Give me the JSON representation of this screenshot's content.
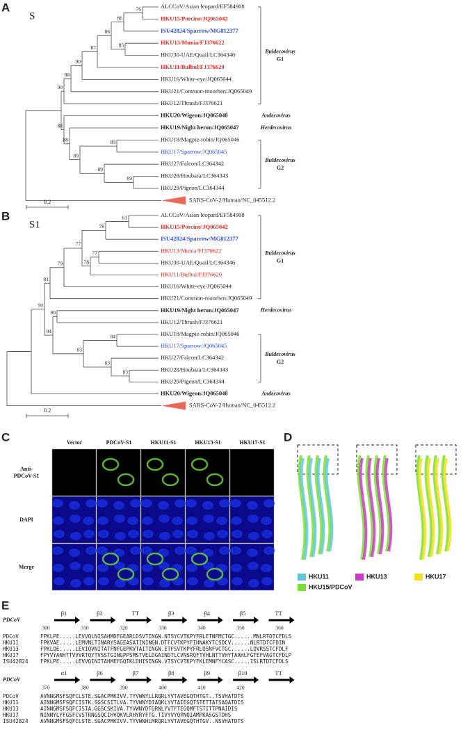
{
  "trees": [
    {
      "letter": "A",
      "title": "S",
      "scale": "0.2",
      "leaves": [
        {
          "label": "ALCCoV/Asian leopard/EF584908"
        },
        {
          "label": "HKU15/Porcine/JQ065042",
          "color": "#e3261f",
          "bold": true
        },
        {
          "label": "ISU42824/Sparrow/MG812377",
          "color": "#2f4fe0",
          "bold": true
        },
        {
          "label": "HKU13/Munia/FJ376622",
          "color": "#e3261f",
          "bold": true
        },
        {
          "label": "HKU30-UAE/Quail/LC364346"
        },
        {
          "label": "HKU11/Bulbul/FJ376620",
          "color": "#e3261f",
          "bold": true
        },
        {
          "label": "HKU16/White-eye/JQ065044"
        },
        {
          "label": "HKU21/Common-moorhen/JQ065049"
        },
        {
          "label": "HKU12/Thrush/FJ376621"
        },
        {
          "label": "HKU20/Wigeon/JQ065048",
          "bold": true
        },
        {
          "label": "HKU19/Night heron/JQ065047",
          "bold": true
        },
        {
          "label": "HKU18/Magpie-robin/JQ065046"
        },
        {
          "label": "HKU17/Sparrow/JQ065045",
          "color": "#2f4fe0"
        },
        {
          "label": "HKU27/Falcon/LC364342"
        },
        {
          "label": "HKU28/Houbara/LC364343"
        },
        {
          "label": "HKU29/Pigeon/LC364344"
        },
        {
          "label": "SARS-CoV-2/Human/NC_045512.2"
        }
      ],
      "bootstraps": [
        76,
        86,
        86,
        85,
        87,
        90,
        88,
        90,
        88,
        88,
        89,
        89,
        89,
        89
      ],
      "clades": [
        {
          "name": "Buldecovirus",
          "group": "G1"
        },
        {
          "name": "Andecovirus"
        },
        {
          "name": "Herdecovirus"
        },
        {
          "name": "Buldecovirus",
          "group": "G2"
        }
      ]
    },
    {
      "letter": "B",
      "title": "S1",
      "scale": "0.2",
      "leaves": [
        {
          "label": "ALCCoV/Asian leopard/EF584908"
        },
        {
          "label": "HKU15/Porcine/JQ065042",
          "color": "#e3261f",
          "bold": true
        },
        {
          "label": "ISU42824/Sparrow/MG812377",
          "color": "#2f4fe0",
          "bold": true
        },
        {
          "label": "HKU13/Munia/FJ376622",
          "color": "#e3261f"
        },
        {
          "label": "HKU30-UAE/Quail/LC364346"
        },
        {
          "label": "HKU11/Bulbul/FJ376620",
          "color": "#e3261f"
        },
        {
          "label": "HKU16/White-eye/JQ065044"
        },
        {
          "label": "HKU21/Common-moorhen/JQ065049"
        },
        {
          "label": "HKU19/Night heron/JQ065047",
          "bold": true
        },
        {
          "label": "HKU12/Thrush/FJ376621"
        },
        {
          "label": "HKU18/Magpie-robin/JQ065046"
        },
        {
          "label": "HKU17/Sparrow/JQ065045",
          "color": "#2f4fe0"
        },
        {
          "label": "HKU27/Falcon/LC364342"
        },
        {
          "label": "HKU28/Houbara/LC364343"
        },
        {
          "label": "HKU29/Pigeon/LC364344"
        },
        {
          "label": "HKU20/Wigeon/JQ065048",
          "bold": true
        },
        {
          "label": "SARS-CoV-2/Human/NC_045512.2"
        }
      ],
      "bootstraps": [
        61,
        78,
        77,
        78,
        77,
        79,
        81,
        90,
        80,
        84,
        84,
        83,
        83,
        83
      ],
      "clades": [
        {
          "name": "Buldecovirus",
          "group": "G1"
        },
        {
          "name": "Herdecovirus"
        },
        {
          "name": "Buldecovirus",
          "group": "G2"
        },
        {
          "name": "Andecovirus"
        }
      ]
    }
  ],
  "microscopy": {
    "letter": "C",
    "columns": [
      "Vector",
      "PDCoV-S1",
      "HKU11-S1",
      "HKU13-S1",
      "HKU17-S1"
    ],
    "rows": [
      "Anti-\nPDCoV-S1",
      "DAPI",
      "Merge"
    ]
  },
  "structures": {
    "letter": "D",
    "legend": [
      {
        "label": "HKU11",
        "color": "#5ec8d8"
      },
      {
        "label": "HKU13",
        "color": "#c83cc8"
      },
      {
        "label": "HKU17",
        "color": "#f0e020"
      },
      {
        "label": "HKU15/PDCoV",
        "color": "#7ce030"
      }
    ]
  },
  "alignment": {
    "letter": "E",
    "blocks": [
      {
        "reference": "PDCoV",
        "elements": [
          "β1",
          "β2",
          "TT",
          "β3",
          "β4",
          "β5",
          "TT"
        ],
        "positions": [
          300,
          310,
          320,
          330,
          340,
          350,
          360
        ],
        "rows": [
          [
            "PDCoV",
            "FPKLPE.....LEVVQLNISAHMDFGEARLDSVTINGN.NTSYCVTKPYFRLETNFMCTGC......MNLRTDTCFDLS"
          ],
          [
            "HKU11",
            "FPKVAE.....LEMVNLTINARYSAGEASATININGN.DTFCVTKPYFIHNAKYTCSDCV......NLRTDTCFDIN"
          ],
          [
            "HKU13",
            "FPKLQE.....LEVIQVNITATFNFGEPKVTAITINGN.ETFSVTKPYFRLQSNFVCTGC......LQVRSSTCFDLF"
          ],
          [
            "HKU17",
            "FPYVYANHTTVVVRTQYTVSSTGINGPPSMSTVELDGAINDTLCVNSRQFTVHLNTTVHYTAAHLFGTEFVAGTCFDLP"
          ],
          [
            "ISU42824",
            "FPKLPE.....LEVVQINITAHMEFGQTKLDHISINGN.VTSYCVTKPYFKLEMNFYCASC.....ISLRTDTCFDLS"
          ]
        ]
      },
      {
        "reference": "PDCoV",
        "elements": [
          "α1",
          "β6",
          "β7",
          "β8",
          "β9",
          "β10",
          "TT"
        ],
        "positions": [
          370,
          380,
          390,
          400,
          410,
          420
        ],
        "rows": [
          [
            "PDCoV",
            "AVNNGMSFSQFCLSTE.SGACPMKIVV.TYVWNYLLRQRLYVTAVEGQTHTGT..TSVHATDTS"
          ],
          [
            "HKU11",
            "AINNGMSFSQFCISTK.SGSCSITLVA.TYVWNYDIAQKLYVTAIEGQTSTETTATSAQATDIS"
          ],
          [
            "HKU13",
            "AINNGMSFSQFCISTA.GGSCSKIVA.TYVWNYDTGRNLYVTFTEGQMFTSTITTPNAIDIS"
          ],
          [
            "HKU17",
            "NINNYLYFGSFCVSTRNGSQCIHVQKVLRHYRYFTG.TIVYVYQPNQIAMPKASGSTDHS"
          ],
          [
            "ISU42824",
            "AVNNGMSFSQFCLSTE.SGACPMKIVV.TYVWNHLMRQRLYVTAVEGQTHTGV..NSVHATDTS"
          ]
        ]
      }
    ]
  }
}
